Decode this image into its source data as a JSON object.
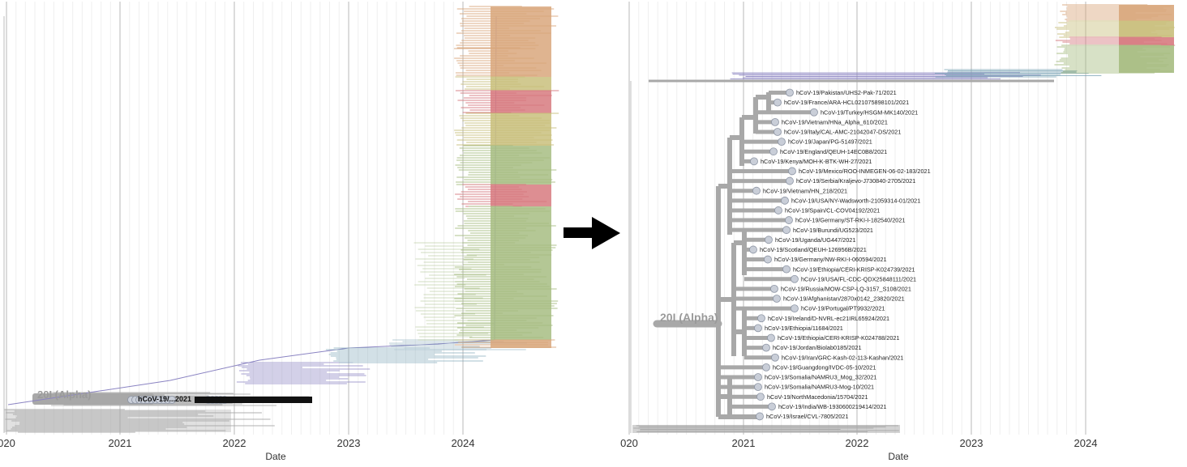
{
  "left_panel": {
    "x_ticks": [
      "020",
      "2021",
      "2022",
      "2023",
      "2024"
    ],
    "x_axis_title": "Date",
    "clade_label": "20I (Alpha)",
    "overlap_text": "hCoV-19/...2021"
  },
  "right_panel": {
    "x_ticks": [
      "020",
      "2021",
      "2022",
      "2023",
      "2024"
    ],
    "x_axis_title": "Date",
    "clade_label": "20I (Alpha)",
    "tips": [
      "hCoV-19/Pakistan/UHS2-Pak-71/2021",
      "hCoV-19/France/ARA-HCL021075898101/2021",
      "hCoV-19/Turkey/HSGM-MK140/2021",
      "hCoV-19/Vietnam/HNa_Alpha_610/2021",
      "hCoV-19/Italy/CAL-AMC-21042047-DS/2021",
      "hCoV-19/Japan/PG-51497/2021",
      "hCoV-19/England/QEUH-14EC0B8/2021",
      "hCoV-19/Kenya/MOH-K-BTK-WH-27/2021",
      "hCoV-19/Mexico/ROO-INMEGEN-06-02-183/2021",
      "hCoV-19/Serbia/Kraljevo-J730840-2705/2021",
      "hCoV-19/Vietnam/HN_218/2021",
      "hCoV-19/USA/NY-Wadsworth-21059314-01/2021",
      "hCoV-19/Spain/CL-COV04192/2021",
      "hCoV-19/Germany/ST-RKI-I-182540/2021",
      "hCoV-19/Burundi/UG523/2021",
      "hCoV-19/Uganda/UG447/2021",
      "hCoV-19/Scotland/QEUH-126956B/2021",
      "hCoV-19/Germany/NW-RKI-I-060594/2021",
      "hCoV-19/Ethiopia/CERI-KRISP-K024739/2021",
      "hCoV-19/USA/FL-CDC-QDX25848111/2021",
      "hCoV-19/Russia/MOW-CSP-LQ-3157_S108/2021",
      "hCoV-19/Afghanistan/2870x0142_23820/2021",
      "hCoV-19/Portugal/PT9932/2021",
      "hCoV-19/Ireland/D-NVRL-ec21IRL65924/2021",
      "hCoV-19/Ethiopia/11684/2021",
      "hCoV-19/Ethiopia/CERI-KRISP-K024788/2021",
      "hCoV-19/Jordan/Biolab0185/2021",
      "hCoV-19/Iran/GRC-Kash-02-113-Kashan/2021",
      "hCoV-19/Guangdong/IVDC-05-10/2021",
      "hCoV-19/Somalia/NAMRU3_Mog_32/2021",
      "hCoV-19/Somalia/NAMRU3-Mog-10/2021",
      "hCoV-19/NorthMacedonia/15704/2021",
      "hCoV-19/India/WB-1930600219414/2021",
      "hCoV-19/Israel/CVL-7805/2021"
    ]
  },
  "colors": {
    "gray_branch": "#a8a8a8",
    "tip_fill": "#c9ced8",
    "tip_stroke": "#8c94a3",
    "orange": "#d9a77c",
    "pink": "#d77a7f",
    "yellow": "#c9bf7c",
    "green": "#a7bd82",
    "teal": "#7fa7b8",
    "purple": "#8a83c2",
    "gridline": "#e6e6e6",
    "arrow": "#000000"
  }
}
